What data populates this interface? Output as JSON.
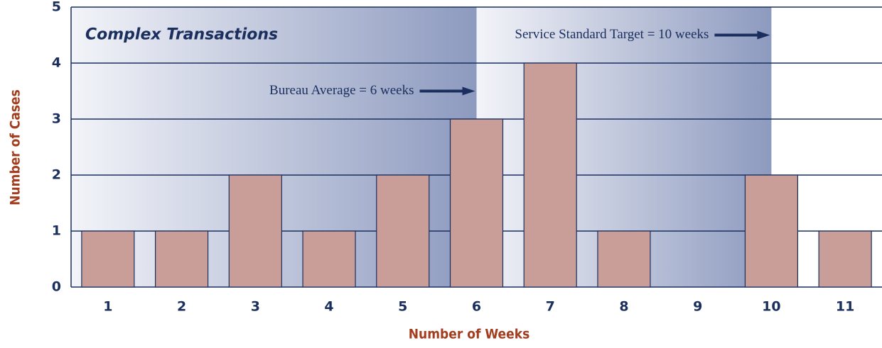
{
  "chart_data": {
    "type": "bar",
    "title": "Complex Transactions",
    "x_label": "Number of Weeks",
    "y_label": "Number of Cases",
    "categories": [
      "1",
      "2",
      "3",
      "4",
      "5",
      "6",
      "7",
      "8",
      "9",
      "10",
      "11"
    ],
    "values": [
      1,
      1,
      2,
      1,
      2,
      3,
      4,
      1,
      0,
      2,
      1
    ],
    "color": "#c99e98",
    "ylim": [
      0,
      5
    ],
    "yticks": [
      0,
      1,
      2,
      3,
      4,
      5
    ],
    "grid": true,
    "annotations": [
      {
        "text": "Bureau Average = 6 weeks",
        "at": "6"
      },
      {
        "text": "Service Standard Target = 10 weeks",
        "at": "10"
      }
    ]
  }
}
